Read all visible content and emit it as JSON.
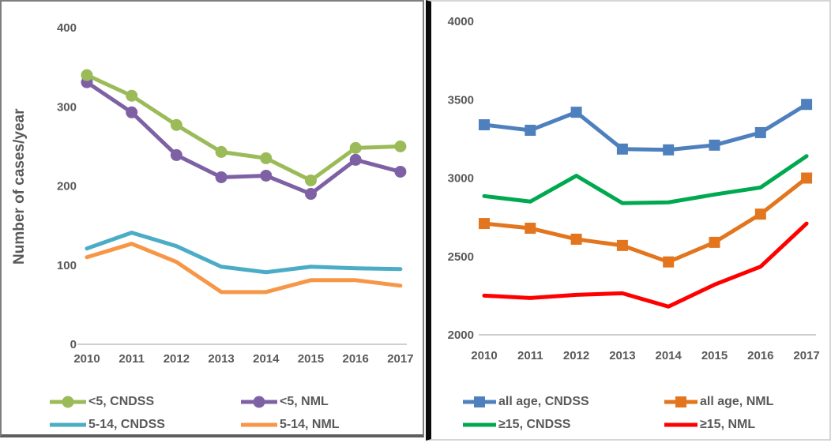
{
  "accent_colors": {
    "axis_text": "#595959",
    "axis_line": "#BFBFBF",
    "left_panel_border": "#7F7F7F",
    "right_panel_border": "#D6D6D6",
    "panel_divider": "#0B0B0B"
  },
  "chart_data": [
    {
      "type": "line",
      "title": "",
      "ylabel": "Number of cases/year",
      "xlabel": "",
      "categories": [
        "2010",
        "2011",
        "2012",
        "2013",
        "2014",
        "2015",
        "2016",
        "2017"
      ],
      "ylim": [
        0,
        400
      ],
      "yticks": [
        0,
        100,
        200,
        300,
        400
      ],
      "grid": false,
      "legend_position": "bottom",
      "series": [
        {
          "name": "<5, CNDSS",
          "color": "#9BBB59",
          "marker": "circle",
          "values": [
            340,
            314,
            277,
            243,
            235,
            207,
            248,
            250
          ]
        },
        {
          "name": "<5, NML",
          "color": "#7E61A5",
          "marker": "circle",
          "values": [
            331,
            293,
            239,
            211,
            213,
            190,
            233,
            218
          ]
        },
        {
          "name": "5-14, CNDSS",
          "color": "#4BACC6",
          "marker": "none",
          "values": [
            121,
            141,
            124,
            98,
            91,
            98,
            96,
            95
          ]
        },
        {
          "name": "5-14, NML",
          "color": "#F79646",
          "marker": "none",
          "values": [
            110,
            127,
            104,
            66,
            66,
            81,
            81,
            74
          ]
        }
      ]
    },
    {
      "type": "line",
      "title": "",
      "ylabel": "",
      "xlabel": "",
      "categories": [
        "2010",
        "2011",
        "2012",
        "2013",
        "2014",
        "2015",
        "2016",
        "2017"
      ],
      "ylim": [
        2000,
        4000
      ],
      "yticks": [
        2000,
        2500,
        3000,
        3500,
        4000
      ],
      "grid": false,
      "legend_position": "bottom",
      "series": [
        {
          "name": "all age, CNDSS",
          "color": "#4E80BE",
          "marker": "square",
          "values": [
            3340,
            3305,
            3420,
            3185,
            3180,
            3210,
            3290,
            3470
          ]
        },
        {
          "name": "all age, NML",
          "color": "#E2751D",
          "marker": "square",
          "values": [
            2710,
            2680,
            2610,
            2570,
            2465,
            2590,
            2770,
            3000
          ]
        },
        {
          "name": "≥15, CNDSS",
          "color": "#00A950",
          "marker": "none",
          "values": [
            2885,
            2850,
            3015,
            2840,
            2845,
            2895,
            2940,
            3140
          ]
        },
        {
          "name": "≥15, NML",
          "color": "#FF0000",
          "marker": "none",
          "values": [
            2250,
            2235,
            2255,
            2265,
            2180,
            2320,
            2435,
            2710
          ]
        }
      ]
    }
  ]
}
